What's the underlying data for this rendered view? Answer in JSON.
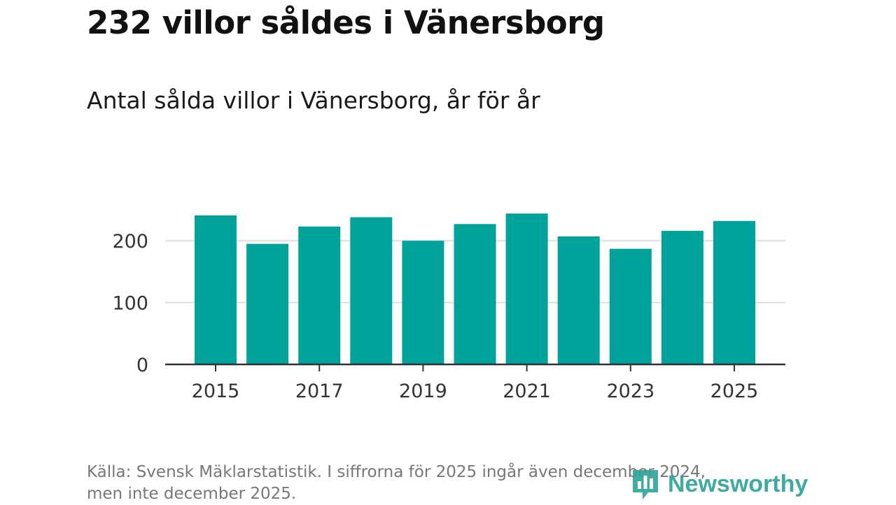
{
  "title": "232 villor såldes i Vänersborg",
  "subtitle": "Antal sålda villor i Vänersborg, år för år",
  "source": {
    "line1": "Källa: Svensk Mäklarstatistik. I siffrorna för 2025 ingår även december 2024,",
    "line2": "men inte december 2025."
  },
  "logo": {
    "text": "Newsworthy",
    "icon": "newsworthy-logo-icon"
  },
  "colors": {
    "bar": "#00a39a",
    "grid": "#dddddd",
    "axis": "#333333",
    "text": "#333333"
  },
  "chart_data": {
    "type": "bar",
    "title": "Antal sålda villor i Vänersborg, år för år",
    "xlabel": "",
    "ylabel": "",
    "categories": [
      "2015",
      "2016",
      "2017",
      "2018",
      "2019",
      "2020",
      "2021",
      "2022",
      "2023",
      "2024",
      "2025"
    ],
    "values": [
      241,
      195,
      223,
      238,
      200,
      227,
      244,
      207,
      187,
      216,
      232
    ],
    "ylim": [
      0,
      260
    ],
    "yticks": [
      0,
      100,
      200
    ],
    "xtick_labels": [
      "2015",
      "2017",
      "2019",
      "2021",
      "2023",
      "2025"
    ],
    "grid": true
  }
}
